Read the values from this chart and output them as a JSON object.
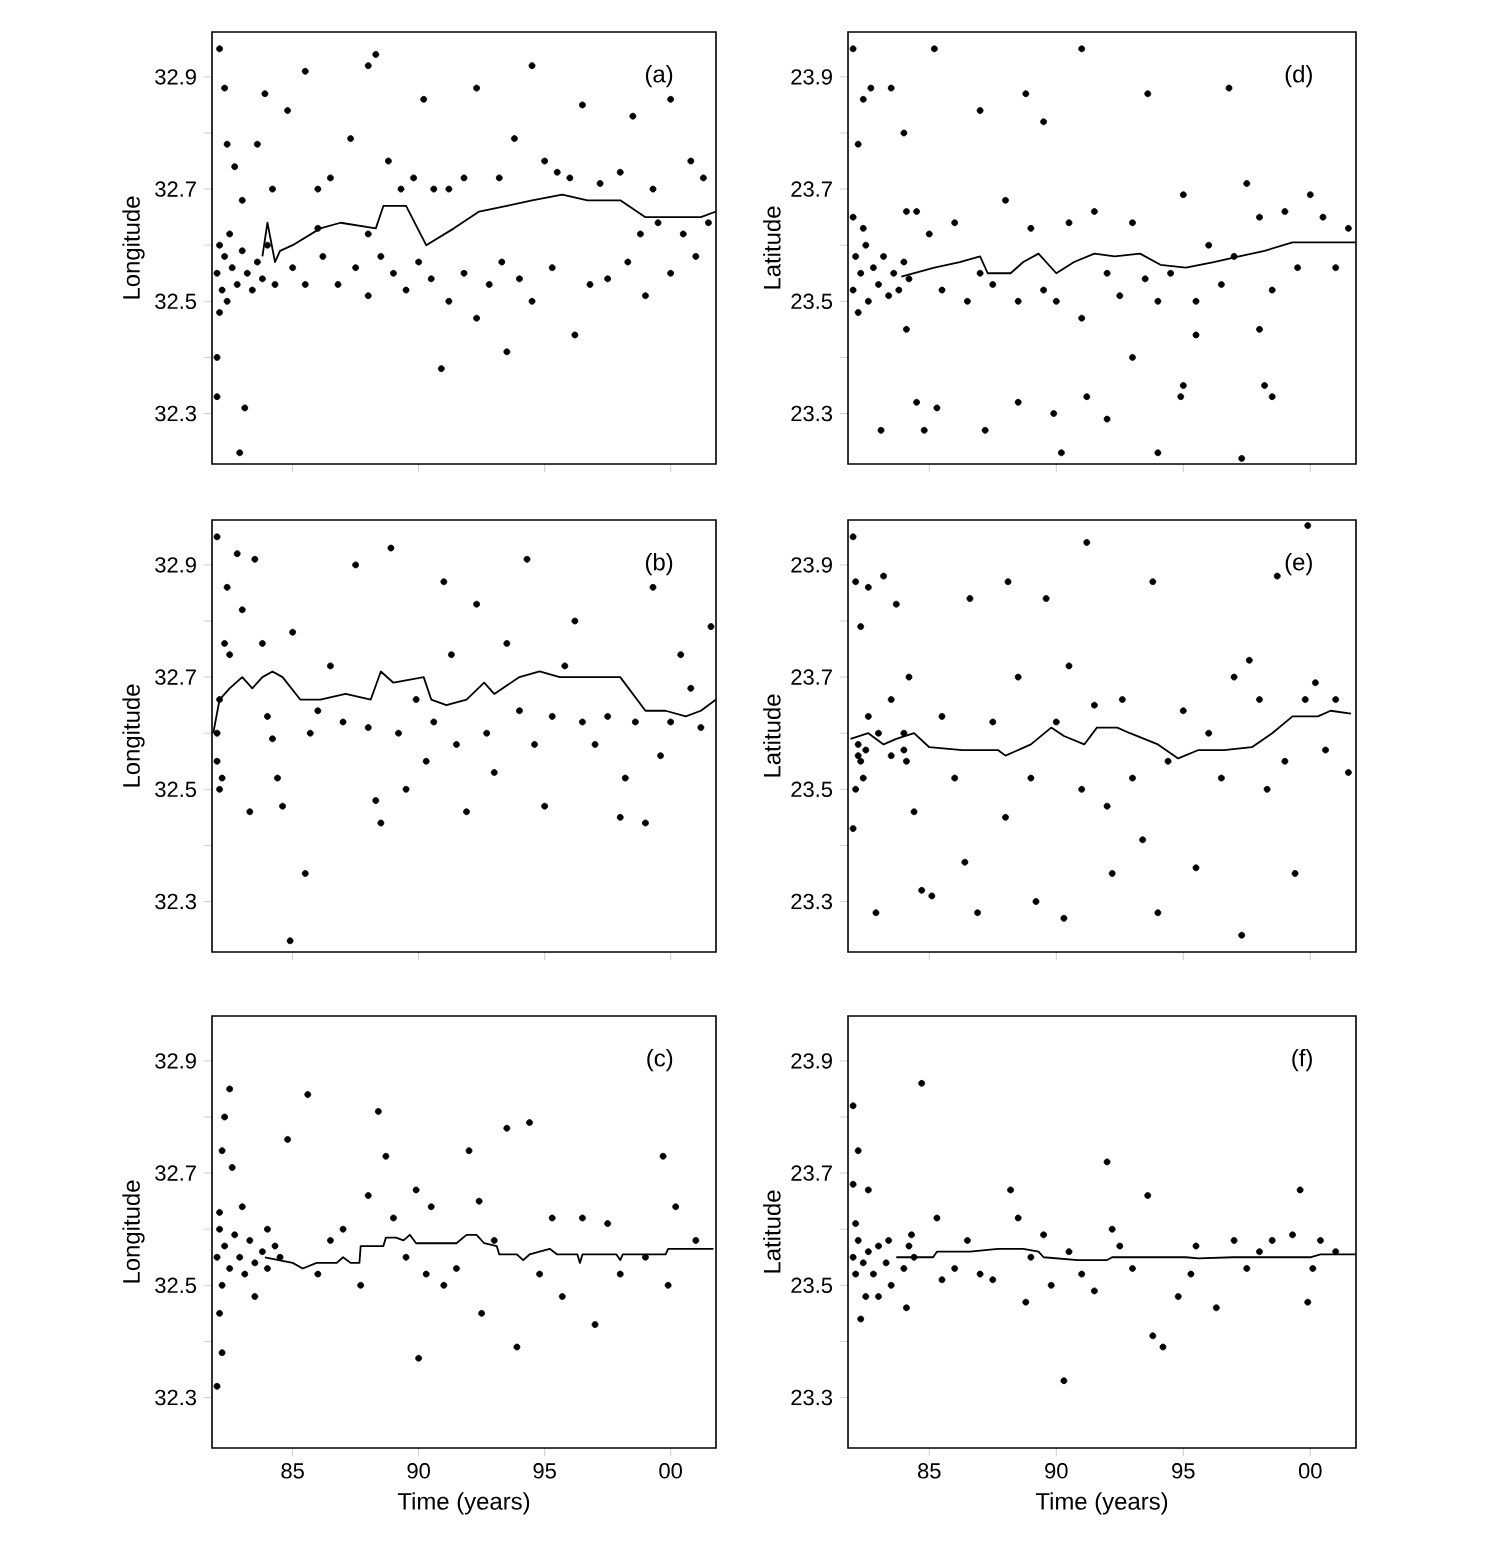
{
  "chart_data": [
    {
      "type": "scatter",
      "ylabel": "Longitude",
      "annotations": [
        "(a)"
      ],
      "xlim": [
        1981.8,
        2001.8
      ],
      "ylim": [
        32.21,
        32.98
      ],
      "xticks": [
        {
          "value": 1985,
          "label": null
        },
        {
          "value": 1990,
          "label": null
        },
        {
          "value": 1995,
          "label": null
        },
        {
          "value": 2000,
          "label": null
        }
      ],
      "yticks": [
        32.3,
        {
          "value": 32.4,
          "label": null
        },
        32.5,
        {
          "value": 32.6,
          "label": null
        },
        32.7,
        {
          "value": 32.8,
          "label": null
        },
        32.9
      ],
      "tick_labels": "y",
      "series": [
        {
          "marker": "circle",
          "color": "#000000",
          "x": [
            1982.0,
            1982.1,
            1982.2,
            1982.3,
            1982.4,
            1982.5,
            1982.6,
            1982.8,
            1983.0,
            1983.2,
            1983.4,
            1983.6,
            1983.8,
            1984.0,
            1984.3,
            1982.1,
            1982.0,
            1982.0,
            1982.9,
            1983.1,
            1982.1,
            1982.3,
            1982.4,
            1982.7,
            1983.0,
            1983.6,
            1983.9,
            1984.2,
            1984.8,
            1985.5,
            1986.0,
            1986.5,
            1987.3,
            1988.0,
            1988.3,
            1988.8,
            1989.3,
            1989.8,
            1990.2,
            1990.6,
            1991.2,
            1991.8,
            1992.3,
            1993.2,
            1993.8,
            1994.5,
            1995.0,
            1995.5,
            1996.0,
            1996.5,
            1997.2,
            1998.0,
            1998.5,
            1999.3,
            2000.0,
            2000.8,
            2001.3,
            1985.0,
            1985.5,
            1986.2,
            1986.8,
            1987.5,
            1988.0,
            1988.5,
            1989.0,
            1989.5,
            1990.0,
            1990.5,
            1990.9,
            1991.2,
            1991.8,
            1992.3,
            1992.8,
            1993.3,
            1993.5,
            1994.0,
            1994.5,
            1995.3,
            1996.2,
            1996.8,
            1997.5,
            1998.3,
            1999.0,
            2000.0,
            2000.5,
            2001.0,
            2001.5,
            1999.5,
            1998.8,
            1988.0,
            1986.0
          ],
          "values": [
            32.55,
            32.6,
            32.52,
            32.58,
            32.5,
            32.62,
            32.56,
            32.53,
            32.59,
            32.55,
            32.52,
            32.57,
            32.54,
            32.6,
            32.53,
            32.48,
            32.4,
            32.33,
            32.23,
            32.31,
            32.95,
            32.88,
            32.78,
            32.74,
            32.68,
            32.78,
            32.87,
            32.7,
            32.84,
            32.91,
            32.7,
            32.72,
            32.79,
            32.92,
            32.94,
            32.75,
            32.7,
            32.72,
            32.86,
            32.7,
            32.7,
            32.72,
            32.88,
            32.72,
            32.79,
            32.92,
            32.75,
            32.73,
            32.72,
            32.85,
            32.71,
            32.73,
            32.83,
            32.7,
            32.86,
            32.75,
            32.72,
            32.56,
            32.53,
            32.58,
            32.53,
            32.56,
            32.51,
            32.58,
            32.55,
            32.52,
            32.57,
            32.54,
            32.38,
            32.5,
            32.55,
            32.47,
            32.53,
            32.57,
            32.41,
            32.54,
            32.5,
            32.56,
            32.44,
            32.53,
            32.54,
            32.57,
            32.51,
            32.55,
            32.62,
            32.58,
            32.64,
            32.64,
            32.62,
            32.62,
            32.63
          ]
        },
        {
          "type": "line",
          "color": "#000000",
          "x": [
            1983.8,
            1984.0,
            1984.3,
            1984.5,
            1985.0,
            1986.1,
            1986.9,
            1988.3,
            1988.6,
            1989.5,
            1990.3,
            1991.4,
            1992.4,
            1993.5,
            1994.5,
            1995.7,
            1996.7,
            1998.0,
            1999.0,
            2000.1,
            2001.2,
            2001.8
          ],
          "values": [
            32.58,
            32.64,
            32.57,
            32.59,
            32.6,
            32.63,
            32.64,
            32.63,
            32.67,
            32.67,
            32.6,
            32.63,
            32.66,
            32.67,
            32.68,
            32.69,
            32.68,
            32.68,
            32.65,
            32.65,
            32.65,
            32.66
          ]
        }
      ]
    },
    {
      "type": "scatter",
      "ylabel": "Latitude",
      "annotations": [
        "(d)"
      ],
      "xlim": [
        1981.8,
        2001.8
      ],
      "ylim": [
        23.21,
        23.98
      ],
      "xticks": [
        {
          "value": 1985,
          "label": null
        },
        {
          "value": 1990,
          "label": null
        },
        {
          "value": 1995,
          "label": null
        },
        {
          "value": 2000,
          "label": null
        }
      ],
      "yticks": [
        23.3,
        {
          "value": 23.4,
          "label": null
        },
        23.5,
        {
          "value": 23.6,
          "label": null
        },
        23.7,
        {
          "value": 23.8,
          "label": null
        },
        23.9
      ],
      "tick_labels": "y",
      "series": [
        {
          "marker": "circle",
          "color": "#000000",
          "x": [
            1982.0,
            1982.1,
            1982.2,
            1982.3,
            1982.5,
            1982.6,
            1982.8,
            1983.0,
            1983.2,
            1983.4,
            1983.6,
            1983.8,
            1984.0,
            1984.2,
            1982.0,
            1982.4,
            1984.1,
            1982.0,
            1982.2,
            1982.4,
            1982.7,
            1983.1,
            1983.5,
            1984.0,
            1984.1,
            1984.5,
            1984.8,
            1985.2,
            1985.3,
            1987.0,
            1987.2,
            1988.5,
            1988.8,
            1989.5,
            1989.9,
            1990.2,
            1991.0,
            1991.2,
            1992.0,
            1993.0,
            1993.6,
            1994.0,
            1994.9,
            1995.0,
            1995.5,
            1996.8,
            1997.3,
            1998.0,
            1998.2,
            1998.5,
            1984.5,
            1985.0,
            1985.5,
            1986.0,
            1986.5,
            1987.0,
            1987.5,
            1988.0,
            1988.5,
            1989.0,
            1989.5,
            1990.0,
            1990.5,
            1991.0,
            1991.5,
            1992.0,
            1992.5,
            1993.0,
            1993.5,
            1994.0,
            1994.5,
            1995.0,
            1995.5,
            1996.0,
            1996.5,
            1997.0,
            1997.5,
            1998.0,
            1998.5,
            1999.0,
            1999.5,
            2000.0,
            2000.5,
            2001.0,
            2001.5
          ],
          "values": [
            23.52,
            23.58,
            23.48,
            23.55,
            23.6,
            23.5,
            23.56,
            23.53,
            23.58,
            23.51,
            23.55,
            23.52,
            23.57,
            23.54,
            23.65,
            23.63,
            23.66,
            23.95,
            23.78,
            23.86,
            23.88,
            23.27,
            23.88,
            23.8,
            23.45,
            23.32,
            23.27,
            23.95,
            23.31,
            23.84,
            23.27,
            23.32,
            23.87,
            23.82,
            23.3,
            23.23,
            23.95,
            23.33,
            23.29,
            23.4,
            23.87,
            23.23,
            23.33,
            23.35,
            23.44,
            23.88,
            23.22,
            23.45,
            23.35,
            23.33,
            23.66,
            23.62,
            23.52,
            23.64,
            23.5,
            23.55,
            23.53,
            23.68,
            23.5,
            23.63,
            23.52,
            23.5,
            23.64,
            23.47,
            23.66,
            23.55,
            23.51,
            23.64,
            23.54,
            23.5,
            23.55,
            23.69,
            23.5,
            23.6,
            23.53,
            23.58,
            23.71,
            23.65,
            23.52,
            23.66,
            23.56,
            23.69,
            23.65,
            23.56,
            23.63
          ]
        },
        {
          "type": "line",
          "color": "#000000",
          "x": [
            1983.9,
            1985.2,
            1986.2,
            1987.0,
            1987.3,
            1988.2,
            1988.7,
            1989.3,
            1990.0,
            1990.7,
            1991.5,
            1992.3,
            1993.3,
            1994.1,
            1995.1,
            1996.2,
            1997.2,
            1998.2,
            1999.3,
            2000.6,
            2001.8
          ],
          "values": [
            23.544,
            23.56,
            23.57,
            23.58,
            23.55,
            23.55,
            23.57,
            23.585,
            23.55,
            23.57,
            23.585,
            23.58,
            23.585,
            23.565,
            23.56,
            23.57,
            23.58,
            23.59,
            23.605,
            23.605,
            23.605
          ]
        }
      ]
    },
    {
      "type": "scatter",
      "ylabel": "Longitude",
      "annotations": [
        "(b)"
      ],
      "xlim": [
        1981.8,
        2001.8
      ],
      "ylim": [
        32.21,
        32.98
      ],
      "xticks": [
        {
          "value": 1985,
          "label": null
        },
        {
          "value": 1990,
          "label": null
        },
        {
          "value": 1995,
          "label": null
        },
        {
          "value": 2000,
          "label": null
        }
      ],
      "yticks": [
        32.3,
        {
          "value": 32.4,
          "label": null
        },
        32.5,
        {
          "value": 32.6,
          "label": null
        },
        32.7,
        {
          "value": 32.8,
          "label": null
        },
        32.9
      ],
      "tick_labels": "y",
      "series": [
        {
          "marker": "circle",
          "color": "#000000",
          "x": [
            1982.0,
            1982.1,
            1982.2,
            1982.3,
            1982.5,
            1982.0,
            1982.4,
            1982.8,
            1983.0,
            1983.3,
            1983.5,
            1983.8,
            1984.0,
            1984.2,
            1984.4,
            1984.6,
            1985.0,
            1984.9,
            1985.5,
            1985.7,
            1986.0,
            1986.5,
            1987.0,
            1987.5,
            1988.0,
            1988.3,
            1988.5,
            1988.9,
            1989.2,
            1989.5,
            1989.9,
            1990.3,
            1990.6,
            1991.0,
            1991.3,
            1991.5,
            1991.9,
            1992.3,
            1992.7,
            1993.0,
            1993.5,
            1994.0,
            1994.3,
            1994.6,
            1995.0,
            1995.3,
            1995.8,
            1996.2,
            1996.5,
            1997.0,
            1997.5,
            1998.0,
            1998.2,
            1998.6,
            1999.0,
            1999.3,
            1999.6,
            2000.0,
            2000.4,
            2000.8,
            2001.2,
            2001.6,
            1982.0,
            1982.1
          ],
          "values": [
            32.55,
            32.5,
            32.52,
            32.76,
            32.74,
            32.95,
            32.86,
            32.92,
            32.82,
            32.46,
            32.91,
            32.76,
            32.63,
            32.59,
            32.52,
            32.47,
            32.78,
            32.23,
            32.35,
            32.6,
            32.64,
            32.72,
            32.62,
            32.9,
            32.61,
            32.48,
            32.44,
            32.93,
            32.6,
            32.5,
            32.66,
            32.55,
            32.62,
            32.87,
            32.74,
            32.58,
            32.46,
            32.83,
            32.6,
            32.53,
            32.76,
            32.64,
            32.91,
            32.58,
            32.47,
            32.63,
            32.72,
            32.8,
            32.62,
            32.58,
            32.63,
            32.45,
            32.52,
            32.62,
            32.44,
            32.86,
            32.56,
            32.62,
            32.74,
            32.68,
            32.61,
            32.79,
            32.6,
            32.66
          ]
        },
        {
          "type": "line",
          "color": "#000000",
          "x": [
            1981.85,
            1982.1,
            1982.5,
            1983.0,
            1983.4,
            1983.8,
            1984.2,
            1984.6,
            1985.3,
            1986.1,
            1987.1,
            1988.1,
            1988.5,
            1989.0,
            1990.2,
            1990.5,
            1991.1,
            1991.9,
            1992.6,
            1993.0,
            1994.0,
            1994.8,
            1995.6,
            1996.7,
            1998.0,
            1999.0,
            1999.8,
            2000.6,
            2001.2,
            2001.8
          ],
          "values": [
            32.6,
            32.66,
            32.68,
            32.7,
            32.68,
            32.7,
            32.71,
            32.7,
            32.66,
            32.66,
            32.67,
            32.66,
            32.71,
            32.69,
            32.7,
            32.66,
            32.65,
            32.66,
            32.69,
            32.67,
            32.7,
            32.71,
            32.7,
            32.7,
            32.7,
            32.64,
            32.64,
            32.63,
            32.64,
            32.66
          ]
        }
      ]
    },
    {
      "type": "scatter",
      "ylabel": "Latitude",
      "annotations": [
        "(e)"
      ],
      "xlim": [
        1981.8,
        2001.8
      ],
      "ylim": [
        23.21,
        23.98
      ],
      "xticks": [
        {
          "value": 1985,
          "label": null
        },
        {
          "value": 1990,
          "label": null
        },
        {
          "value": 1995,
          "label": null
        },
        {
          "value": 2000,
          "label": null
        }
      ],
      "yticks": [
        23.3,
        {
          "value": 23.4,
          "label": null
        },
        23.5,
        {
          "value": 23.6,
          "label": null
        },
        23.7,
        {
          "value": 23.8,
          "label": null
        },
        23.9
      ],
      "tick_labels": "y",
      "series": [
        {
          "marker": "circle",
          "color": "#000000",
          "x": [
            1982.0,
            1982.1,
            1982.3,
            1982.6,
            1982.2,
            1982.4,
            1982.0,
            1982.1,
            1982.6,
            1982.9,
            1983.2,
            1983.5,
            1983.7,
            1984.0,
            1984.2,
            1984.4,
            1984.7,
            1985.1,
            1985.5,
            1986.0,
            1986.4,
            1986.6,
            1986.9,
            1987.5,
            1988.0,
            1988.1,
            1988.5,
            1989.0,
            1989.2,
            1989.6,
            1990.0,
            1990.3,
            1990.5,
            1991.0,
            1991.2,
            1991.5,
            1992.0,
            1992.2,
            1992.6,
            1993.0,
            1993.4,
            1993.8,
            1994.0,
            1994.4,
            1995.0,
            1995.5,
            1996.0,
            1996.5,
            1997.0,
            1997.3,
            1997.6,
            1998.0,
            1998.3,
            1998.7,
            1999.0,
            1999.4,
            1999.8,
            2000.2,
            2000.6,
            2001.0,
            2001.5,
            1999.9,
            1982.2,
            1982.3,
            1982.5,
            1983.0,
            1983.5,
            1984.0,
            1984.1
          ],
          "values": [
            23.95,
            23.87,
            23.79,
            23.86,
            23.56,
            23.52,
            23.43,
            23.5,
            23.63,
            23.28,
            23.88,
            23.66,
            23.83,
            23.57,
            23.7,
            23.46,
            23.32,
            23.31,
            23.63,
            23.52,
            23.37,
            23.84,
            23.28,
            23.62,
            23.45,
            23.87,
            23.7,
            23.52,
            23.3,
            23.84,
            23.62,
            23.27,
            23.72,
            23.5,
            23.94,
            23.65,
            23.47,
            23.35,
            23.66,
            23.52,
            23.41,
            23.87,
            23.28,
            23.55,
            23.64,
            23.36,
            23.6,
            23.52,
            23.7,
            23.24,
            23.73,
            23.66,
            23.5,
            23.88,
            23.55,
            23.35,
            23.66,
            23.69,
            23.57,
            23.66,
            23.53,
            23.97,
            23.58,
            23.55,
            23.57,
            23.6,
            23.56,
            23.6,
            23.55
          ]
        },
        {
          "type": "line",
          "color": "#000000",
          "x": [
            1981.9,
            1982.6,
            1983.2,
            1983.7,
            1984.4,
            1985.0,
            1986.3,
            1987.7,
            1988.0,
            1989.0,
            1989.8,
            1990.3,
            1991.1,
            1991.6,
            1992.4,
            1992.9,
            1994.0,
            1994.8,
            1995.6,
            1996.6,
            1997.7,
            1998.5,
            1999.3,
            2000.3,
            2000.8,
            2001.6
          ],
          "values": [
            23.59,
            23.6,
            23.58,
            23.59,
            23.6,
            23.575,
            23.57,
            23.57,
            23.56,
            23.58,
            23.61,
            23.595,
            23.58,
            23.61,
            23.61,
            23.6,
            23.58,
            23.555,
            23.57,
            23.57,
            23.575,
            23.6,
            23.63,
            23.63,
            23.64,
            23.635
          ]
        }
      ]
    },
    {
      "type": "scatter",
      "xlabel": "Time (years)",
      "ylabel": "Longitude",
      "annotations": [
        "(c)"
      ],
      "xlim": [
        1981.8,
        2001.8
      ],
      "ylim": [
        32.21,
        32.98
      ],
      "xticks": [
        {
          "value": 1985,
          "label": "85"
        },
        {
          "value": 1990,
          "label": "90"
        },
        {
          "value": 1995,
          "label": "95"
        },
        {
          "value": 2000,
          "label": "00"
        }
      ],
      "yticks": [
        32.3,
        {
          "value": 32.4,
          "label": null
        },
        32.5,
        {
          "value": 32.6,
          "label": null
        },
        32.7,
        {
          "value": 32.8,
          "label": null
        },
        32.9
      ],
      "series": [
        {
          "marker": "circle",
          "color": "#000000",
          "x": [
            1982.0,
            1982.1,
            1982.2,
            1982.3,
            1982.5,
            1982.7,
            1982.9,
            1983.1,
            1983.3,
            1983.5,
            1983.8,
            1984.0,
            1984.3,
            1984.5,
            1982.1,
            1982.0,
            1982.2,
            1982.3,
            1982.5,
            1982.6,
            1982.1,
            1982.2,
            1983.0,
            1983.5,
            1984.0,
            1984.8,
            1985.6,
            1986.0,
            1986.5,
            1987.0,
            1987.7,
            1988.0,
            1988.4,
            1988.7,
            1989.0,
            1989.5,
            1989.9,
            1990.0,
            1990.3,
            1990.5,
            1991.0,
            1991.5,
            1992.0,
            1992.4,
            1992.5,
            1993.0,
            1993.5,
            1993.9,
            1994.4,
            1994.8,
            1995.3,
            1995.7,
            1996.5,
            1997.0,
            1997.5,
            1998.0,
            1999.0,
            1999.7,
            1999.9,
            2000.2,
            2001.0
          ],
          "values": [
            32.55,
            32.6,
            32.5,
            32.57,
            32.53,
            32.59,
            32.55,
            32.52,
            32.58,
            32.54,
            32.56,
            32.53,
            32.57,
            32.55,
            32.63,
            32.32,
            32.74,
            32.8,
            32.85,
            32.71,
            32.45,
            32.38,
            32.64,
            32.48,
            32.6,
            32.76,
            32.84,
            32.52,
            32.58,
            32.6,
            32.5,
            32.66,
            32.81,
            32.73,
            32.62,
            32.55,
            32.67,
            32.37,
            32.52,
            32.64,
            32.5,
            32.53,
            32.74,
            32.65,
            32.45,
            32.58,
            32.78,
            32.39,
            32.79,
            32.52,
            32.62,
            32.48,
            32.62,
            32.43,
            32.61,
            32.52,
            32.55,
            32.73,
            32.5,
            32.64,
            32.58
          ]
        },
        {
          "type": "line",
          "color": "#000000",
          "x": [
            1983.9,
            1985.0,
            1985.4,
            1985.95,
            1986.75,
            1987.0,
            1987.3,
            1987.65,
            1987.7,
            1988.6,
            1988.7,
            1989.1,
            1989.4,
            1989.65,
            1989.9,
            1990.7,
            1991.5,
            1991.9,
            1992.3,
            1992.6,
            1993.1,
            1993.2,
            1993.9,
            1994.15,
            1994.4,
            1995.2,
            1995.5,
            1996.3,
            1996.4,
            1996.5,
            1997.85,
            1998.0,
            1998.1,
            1999.8,
            1999.9,
            2001.7
          ],
          "values": [
            32.55,
            32.54,
            32.53,
            32.54,
            32.54,
            32.55,
            32.54,
            32.54,
            32.57,
            32.57,
            32.585,
            32.585,
            32.58,
            32.59,
            32.575,
            32.575,
            32.575,
            32.59,
            32.59,
            32.575,
            32.57,
            32.555,
            32.555,
            32.545,
            32.555,
            32.565,
            32.555,
            32.555,
            32.54,
            32.555,
            32.555,
            32.545,
            32.555,
            32.555,
            32.565,
            32.565
          ]
        }
      ]
    },
    {
      "type": "scatter",
      "xlabel": "Time (years)",
      "ylabel": "Latitude",
      "annotations": [
        "(f)"
      ],
      "xlim": [
        1981.8,
        2001.8
      ],
      "ylim": [
        23.21,
        23.98
      ],
      "xticks": [
        {
          "value": 1985,
          "label": "85"
        },
        {
          "value": 1990,
          "label": "90"
        },
        {
          "value": 1995,
          "label": "95"
        },
        {
          "value": 2000,
          "label": "00"
        }
      ],
      "yticks": [
        23.3,
        {
          "value": 23.4,
          "label": null
        },
        23.5,
        {
          "value": 23.6,
          "label": null
        },
        23.7,
        {
          "value": 23.8,
          "label": null
        },
        23.9
      ],
      "series": [
        {
          "marker": "circle",
          "color": "#000000",
          "x": [
            1982.0,
            1982.1,
            1982.2,
            1982.4,
            1982.6,
            1982.8,
            1983.0,
            1983.3,
            1983.4,
            1984.0,
            1984.2,
            1984.4,
            1982.1,
            1982.0,
            1982.0,
            1982.2,
            1982.3,
            1982.5,
            1982.6,
            1983.0,
            1983.5,
            1984.1,
            1984.3,
            1984.7,
            1985.3,
            1985.5,
            1986.0,
            1986.5,
            1987.0,
            1987.5,
            1988.2,
            1988.5,
            1988.8,
            1989.0,
            1989.5,
            1989.8,
            1990.3,
            1990.5,
            1991.0,
            1991.5,
            1992.0,
            1992.2,
            1992.5,
            1993.0,
            1993.6,
            1993.8,
            1994.2,
            1994.8,
            1995.3,
            1995.5,
            1996.3,
            1997.0,
            1997.5,
            1998.0,
            1998.5,
            1999.3,
            1999.6,
            1999.9,
            2000.1,
            2000.4,
            2001.0
          ],
          "values": [
            23.55,
            23.52,
            23.58,
            23.54,
            23.56,
            23.52,
            23.57,
            23.54,
            23.58,
            23.53,
            23.57,
            23.55,
            23.61,
            23.82,
            23.68,
            23.74,
            23.44,
            23.48,
            23.67,
            23.48,
            23.5,
            23.46,
            23.59,
            23.86,
            23.62,
            23.51,
            23.53,
            23.58,
            23.52,
            23.51,
            23.67,
            23.62,
            23.47,
            23.55,
            23.59,
            23.5,
            23.33,
            23.56,
            23.52,
            23.49,
            23.72,
            23.6,
            23.57,
            23.53,
            23.66,
            23.41,
            23.39,
            23.48,
            23.52,
            23.57,
            23.46,
            23.58,
            23.53,
            23.56,
            23.58,
            23.59,
            23.67,
            23.47,
            23.53,
            23.58,
            23.56
          ]
        },
        {
          "type": "line",
          "color": "#000000",
          "x": [
            1983.7,
            1985.15,
            1985.3,
            1986.6,
            1987.7,
            1988.7,
            1989.3,
            1989.5,
            1990.85,
            1992.0,
            1992.2,
            1993.5,
            1995.1,
            1995.6,
            1996.95,
            1998.3,
            2000.0,
            2000.4,
            2001.8
          ],
          "values": [
            23.55,
            23.55,
            23.56,
            23.56,
            23.565,
            23.565,
            23.56,
            23.55,
            23.545,
            23.545,
            23.55,
            23.55,
            23.55,
            23.548,
            23.55,
            23.55,
            23.55,
            23.555,
            23.555
          ]
        }
      ]
    }
  ]
}
